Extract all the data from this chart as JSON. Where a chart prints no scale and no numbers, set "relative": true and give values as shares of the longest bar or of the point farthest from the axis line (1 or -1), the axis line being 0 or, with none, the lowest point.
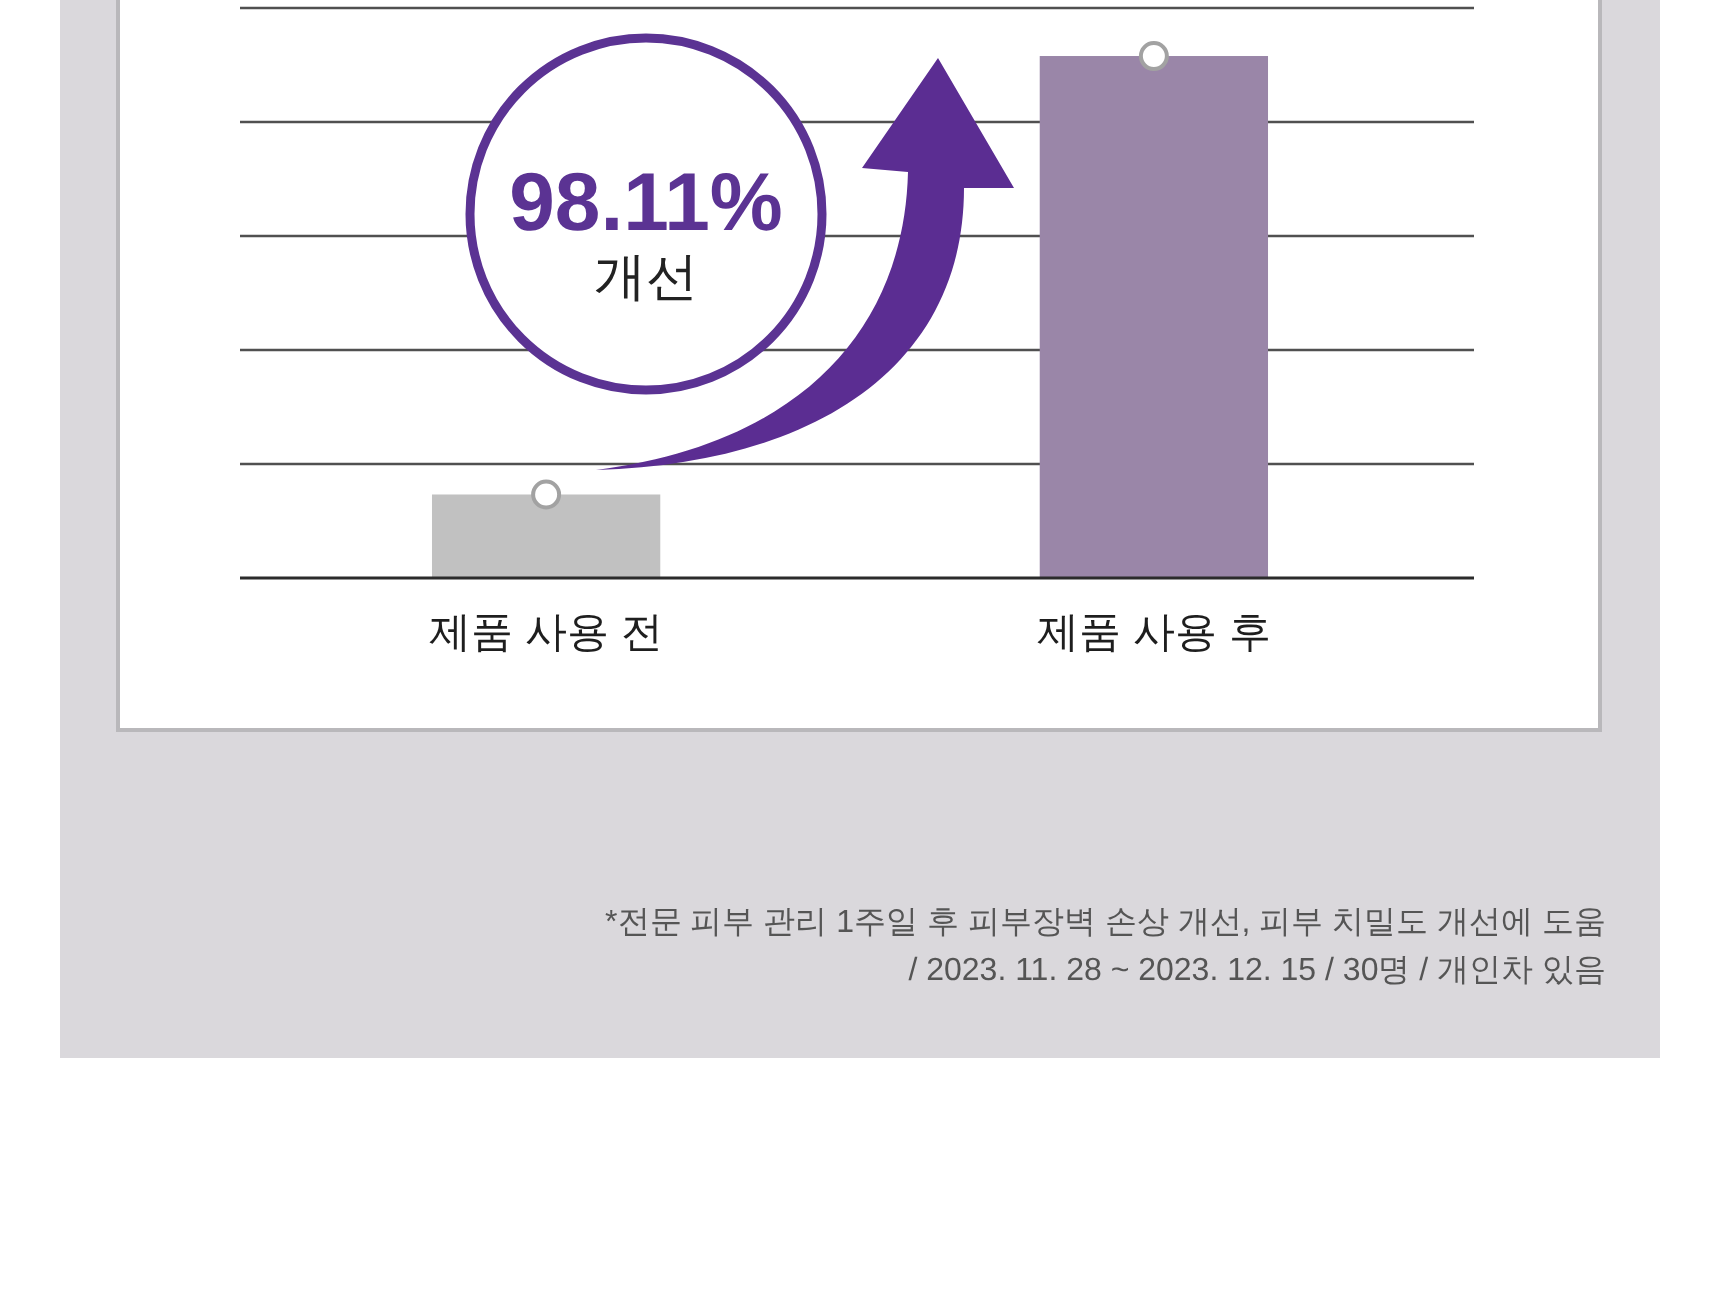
{
  "chart_data": {
    "type": "bar",
    "relative": true,
    "categories": [
      "제품 사용 전",
      "제품 사용 후"
    ],
    "series": [
      {
        "values": [
          0.16,
          1
        ],
        "colors": [
          "#c1c1c1",
          "#9a86a8"
        ]
      },
      {
        "type": "scatter",
        "x": [
          "제품 사용 전",
          "제품 사용 후"
        ],
        "values": [
          0.16,
          1
        ],
        "color": "#ffffff",
        "marker": "circle"
      }
    ],
    "grid": "y",
    "annotations": [
      "98.11%",
      "개선",
      "*전문 피부 관리 1주일 후 피부장벽 손상 개선, 피부 치밀도 개선에 도움",
      "/ 2023. 11. 28 ~ 2023. 12. 15 / 30명 / 개인차 있음"
    ]
  }
}
